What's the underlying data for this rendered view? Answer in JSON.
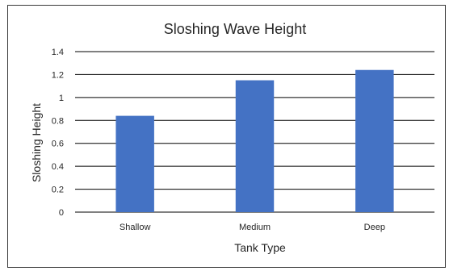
{
  "chart_data": {
    "type": "bar",
    "title": "Sloshing Wave Height",
    "xlabel": "Tank Type",
    "ylabel": "Sloshing Height",
    "categories": [
      "Shallow",
      "Medium",
      "Deep"
    ],
    "values": [
      0.84,
      1.15,
      1.24
    ],
    "ylim": [
      0,
      1.4
    ],
    "yticks": [
      0,
      0.2,
      0.4,
      0.6,
      0.8,
      1,
      1.2,
      1.4
    ],
    "ytick_labels": [
      "0",
      "0.2",
      "0.4",
      "0.6",
      "0.8",
      "1",
      "1.2",
      "1.4"
    ],
    "grid": true,
    "legend": "none",
    "colors": {
      "bar": "#4472c4",
      "gridline": "#000000",
      "text": "#262626",
      "frame": "#3a3a3a"
    }
  }
}
